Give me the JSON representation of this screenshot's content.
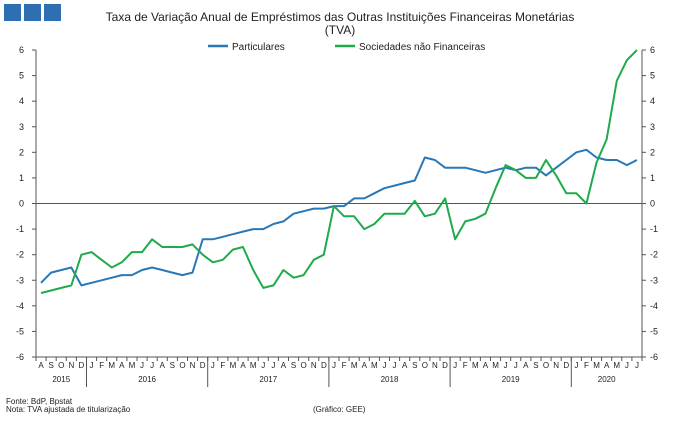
{
  "header": {
    "title": "Taxa de Variação Anual de Empréstimos das Outras Instituições Financeiras Monetárias",
    "subtitle": "(TVA)"
  },
  "footer": {
    "source": "Fonte: BdP, Bpstat",
    "note": "Nota: TVA ajustada de titularização",
    "credit": "(Gráfico: GEE)"
  },
  "colors": {
    "particulares": "#2878b8",
    "sociedades": "#1faa4b",
    "logo": "#2e6fb3"
  },
  "chart_data": {
    "type": "line",
    "ylim": [
      -6,
      6
    ],
    "y_ticks": [
      "6",
      "5",
      "4",
      "3",
      "2",
      "1",
      "0",
      "-1",
      "-2",
      "-3",
      "-4",
      "-5",
      "-6"
    ],
    "grid": false,
    "legend_position": "top-center",
    "month_labels": [
      "A",
      "S",
      "O",
      "N",
      "D",
      "J",
      "F",
      "M",
      "A",
      "M",
      "J",
      "J",
      "A",
      "S",
      "O",
      "N",
      "D",
      "J",
      "F",
      "M",
      "A",
      "M",
      "J",
      "J",
      "A",
      "S",
      "O",
      "N",
      "D",
      "J",
      "F",
      "M",
      "A",
      "M",
      "J",
      "J",
      "A",
      "S",
      "O",
      "N",
      "D",
      "J",
      "F",
      "M",
      "A",
      "M",
      "J",
      "J",
      "A",
      "S",
      "O",
      "N",
      "D",
      "J",
      "F",
      "M",
      "A",
      "M",
      "J",
      "J"
    ],
    "year_labels": [
      "2015",
      "2016",
      "2017",
      "2018",
      "2019",
      "2020"
    ],
    "x": [
      "2015-08",
      "2015-09",
      "2015-10",
      "2015-11",
      "2015-12",
      "2016-01",
      "2016-02",
      "2016-03",
      "2016-04",
      "2016-05",
      "2016-06",
      "2016-07",
      "2016-08",
      "2016-09",
      "2016-10",
      "2016-11",
      "2016-12",
      "2017-01",
      "2017-02",
      "2017-03",
      "2017-04",
      "2017-05",
      "2017-06",
      "2017-07",
      "2017-08",
      "2017-09",
      "2017-10",
      "2017-11",
      "2017-12",
      "2018-01",
      "2018-02",
      "2018-03",
      "2018-04",
      "2018-05",
      "2018-06",
      "2018-07",
      "2018-08",
      "2018-09",
      "2018-10",
      "2018-11",
      "2018-12",
      "2019-01",
      "2019-02",
      "2019-03",
      "2019-04",
      "2019-05",
      "2019-06",
      "2019-07",
      "2019-08",
      "2019-09",
      "2019-10",
      "2019-11",
      "2019-12",
      "2020-01",
      "2020-02",
      "2020-03",
      "2020-04",
      "2020-05",
      "2020-06",
      "2020-07"
    ],
    "series": [
      {
        "name": "Particulares",
        "values": [
          -3.1,
          -2.7,
          -2.6,
          -2.5,
          -3.2,
          -3.1,
          -3.0,
          -2.9,
          -2.8,
          -2.8,
          -2.6,
          -2.5,
          -2.6,
          -2.7,
          -2.8,
          -2.7,
          -1.4,
          -1.4,
          -1.3,
          -1.2,
          -1.1,
          -1.0,
          -1.0,
          -0.8,
          -0.7,
          -0.4,
          -0.3,
          -0.2,
          -0.2,
          -0.1,
          -0.1,
          0.2,
          0.2,
          0.4,
          0.6,
          0.7,
          0.8,
          0.9,
          1.8,
          1.7,
          1.4,
          1.4,
          1.4,
          1.3,
          1.2,
          1.3,
          1.4,
          1.3,
          1.4,
          1.4,
          1.1,
          1.4,
          1.7,
          2.0,
          2.1,
          1.8,
          1.7,
          1.7,
          1.5,
          1.7
        ]
      },
      {
        "name": "Sociedades não Financeiras",
        "values": [
          -3.5,
          -3.4,
          -3.3,
          -3.2,
          -2.0,
          -1.9,
          -2.2,
          -2.5,
          -2.3,
          -1.9,
          -1.9,
          -1.4,
          -1.7,
          -1.7,
          -1.7,
          -1.6,
          -2.0,
          -2.3,
          -2.2,
          -1.8,
          -1.7,
          -2.6,
          -3.3,
          -3.2,
          -2.6,
          -2.9,
          -2.8,
          -2.2,
          -2.0,
          -0.1,
          -0.5,
          -0.5,
          -1.0,
          -0.8,
          -0.4,
          -0.4,
          -0.4,
          0.1,
          -0.5,
          -0.4,
          0.2,
          -1.4,
          -0.7,
          -0.6,
          -0.4,
          0.6,
          1.5,
          1.3,
          1.0,
          1.0,
          1.7,
          1.1,
          0.4,
          0.4,
          0.0,
          1.6,
          2.5,
          4.8,
          5.6,
          6.0
        ]
      }
    ]
  }
}
